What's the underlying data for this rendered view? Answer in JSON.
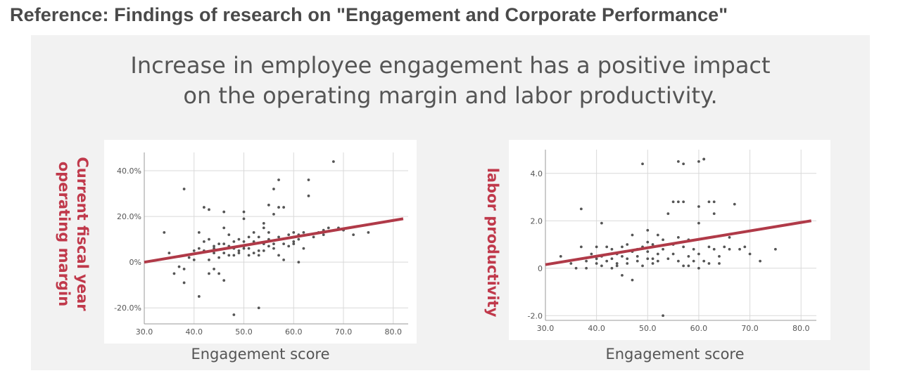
{
  "header": {
    "title": "Reference: Findings of research on \"Engagement and Corporate Performance\"",
    "subtitle_line1": "Increase in employee engagement has a positive impact",
    "subtitle_line2": "on the operating margin and labor productivity."
  },
  "colors": {
    "trend": "#b03a48",
    "ylabel": "#c0394b",
    "point": "#555555",
    "grid": "#d9d9d9"
  },
  "chart_data": [
    {
      "type": "scatter",
      "title": "",
      "xlabel": "Engagement score",
      "ylabel_lines": [
        "Current fiscal year",
        "operating margin"
      ],
      "xlim": [
        30,
        83
      ],
      "ylim": [
        -27,
        48
      ],
      "xticks": [
        30,
        40,
        50,
        60,
        70,
        80
      ],
      "xtick_labels": [
        "30.0",
        "40.0",
        "50.0",
        "60.0",
        "70.0",
        "80.0"
      ],
      "yticks": [
        -20,
        0,
        20,
        40
      ],
      "ytick_labels": [
        "-20.0%",
        "0%",
        "20.0%",
        "40.0%"
      ],
      "trend": [
        [
          30,
          0
        ],
        [
          82,
          19
        ]
      ],
      "points": [
        [
          34,
          13
        ],
        [
          35,
          4
        ],
        [
          36,
          -5
        ],
        [
          37,
          -2
        ],
        [
          38,
          -3
        ],
        [
          38,
          32
        ],
        [
          38,
          -9
        ],
        [
          39,
          2
        ],
        [
          40,
          1
        ],
        [
          40,
          5
        ],
        [
          41,
          6
        ],
        [
          41,
          13
        ],
        [
          41,
          -15
        ],
        [
          42,
          24
        ],
        [
          42,
          9
        ],
        [
          42,
          5
        ],
        [
          43,
          23
        ],
        [
          43,
          10
        ],
        [
          43,
          1
        ],
        [
          43,
          -5
        ],
        [
          44,
          7
        ],
        [
          44,
          4
        ],
        [
          44,
          6
        ],
        [
          44,
          -3
        ],
        [
          45,
          8
        ],
        [
          45,
          2
        ],
        [
          45,
          -5
        ],
        [
          46,
          4
        ],
        [
          46,
          22
        ],
        [
          46,
          -8
        ],
        [
          46,
          15
        ],
        [
          46,
          8
        ],
        [
          47,
          3
        ],
        [
          47,
          7
        ],
        [
          47,
          12
        ],
        [
          48,
          -23
        ],
        [
          48,
          6
        ],
        [
          48,
          9
        ],
        [
          48,
          3
        ],
        [
          49,
          5
        ],
        [
          49,
          10
        ],
        [
          49,
          4
        ],
        [
          50,
          6
        ],
        [
          50,
          19
        ],
        [
          50,
          22
        ],
        [
          50,
          9
        ],
        [
          50,
          7
        ],
        [
          51,
          3
        ],
        [
          51,
          11
        ],
        [
          51,
          6
        ],
        [
          52,
          4
        ],
        [
          52,
          13
        ],
        [
          52,
          9
        ],
        [
          53,
          5
        ],
        [
          53,
          11
        ],
        [
          53,
          -20
        ],
        [
          53,
          3
        ],
        [
          54,
          8
        ],
        [
          54,
          17
        ],
        [
          54,
          15
        ],
        [
          54,
          5
        ],
        [
          55,
          10
        ],
        [
          55,
          7
        ],
        [
          55,
          25
        ],
        [
          55,
          13
        ],
        [
          56,
          21
        ],
        [
          56,
          32
        ],
        [
          56,
          6
        ],
        [
          56,
          8
        ],
        [
          57,
          36
        ],
        [
          57,
          11
        ],
        [
          57,
          24
        ],
        [
          57,
          3
        ],
        [
          58,
          1
        ],
        [
          58,
          8
        ],
        [
          58,
          24
        ],
        [
          59,
          7
        ],
        [
          59,
          12
        ],
        [
          60,
          13
        ],
        [
          60,
          9
        ],
        [
          60,
          8
        ],
        [
          61,
          12
        ],
        [
          61,
          10
        ],
        [
          61,
          0
        ],
        [
          62,
          13
        ],
        [
          62,
          6
        ],
        [
          63,
          12
        ],
        [
          63,
          29
        ],
        [
          63,
          36
        ],
        [
          64,
          11
        ],
        [
          65,
          13
        ],
        [
          66,
          14
        ],
        [
          66,
          12
        ],
        [
          67,
          15
        ],
        [
          68,
          44
        ],
        [
          69,
          15
        ],
        [
          70,
          14
        ],
        [
          72,
          12
        ],
        [
          75,
          13
        ]
      ]
    },
    {
      "type": "scatter",
      "title": "",
      "xlabel": "Engagement score",
      "ylabel_lines": [
        "labor productivity"
      ],
      "xlim": [
        30,
        83
      ],
      "ylim": [
        -2.2,
        5.0
      ],
      "xticks": [
        30,
        40,
        50,
        60,
        70,
        80
      ],
      "xtick_labels": [
        "30.0",
        "40.0",
        "50.0",
        "60.0",
        "70.0",
        "80.0"
      ],
      "yticks": [
        -2,
        0,
        2,
        4
      ],
      "ytick_labels": [
        "-2.0",
        "0",
        "2.0",
        "4.0"
      ],
      "trend": [
        [
          30,
          0.15
        ],
        [
          82,
          2.0
        ]
      ],
      "points": [
        [
          33,
          0.5
        ],
        [
          35,
          0.2
        ],
        [
          36,
          0.0
        ],
        [
          37,
          0.9
        ],
        [
          37,
          2.5
        ],
        [
          38,
          0.3
        ],
        [
          38,
          0.0
        ],
        [
          39,
          0.6
        ],
        [
          40,
          0.9
        ],
        [
          40,
          0.4
        ],
        [
          40,
          0.2
        ],
        [
          41,
          1.9
        ],
        [
          41,
          0.1
        ],
        [
          41,
          0.5
        ],
        [
          42,
          0.9
        ],
        [
          42,
          0.3
        ],
        [
          43,
          0.8
        ],
        [
          43,
          0.0
        ],
        [
          43,
          0.4
        ],
        [
          44,
          0.6
        ],
        [
          44,
          0.2
        ],
        [
          44,
          0.1
        ],
        [
          45,
          -0.3
        ],
        [
          45,
          0.5
        ],
        [
          45,
          0.9
        ],
        [
          46,
          1.0
        ],
        [
          46,
          0.2
        ],
        [
          46,
          0.4
        ],
        [
          47,
          0.7
        ],
        [
          47,
          -0.5
        ],
        [
          47,
          1.4
        ],
        [
          48,
          0.3
        ],
        [
          48,
          0.8
        ],
        [
          48,
          0.5
        ],
        [
          49,
          4.4
        ],
        [
          49,
          0.9
        ],
        [
          49,
          0.1
        ],
        [
          50,
          1.1
        ],
        [
          50,
          1.6
        ],
        [
          50,
          0.4
        ],
        [
          50,
          0.7
        ],
        [
          51,
          0.2
        ],
        [
          51,
          1.0
        ],
        [
          51,
          0.4
        ],
        [
          52,
          1.4
        ],
        [
          52,
          0.6
        ],
        [
          52,
          0.3
        ],
        [
          53,
          -2.0
        ],
        [
          53,
          0.8
        ],
        [
          53,
          1.2
        ],
        [
          54,
          0.4
        ],
        [
          54,
          2.3
        ],
        [
          55,
          1.0
        ],
        [
          55,
          0.6
        ],
        [
          55,
          2.8
        ],
        [
          56,
          4.5
        ],
        [
          56,
          2.8
        ],
        [
          56,
          0.3
        ],
        [
          56,
          1.3
        ],
        [
          57,
          4.4
        ],
        [
          57,
          2.8
        ],
        [
          57,
          0.1
        ],
        [
          57,
          0.9
        ],
        [
          58,
          1.2
        ],
        [
          58,
          0.5
        ],
        [
          58,
          0.1
        ],
        [
          59,
          0.8
        ],
        [
          59,
          0.3
        ],
        [
          60,
          4.5
        ],
        [
          60,
          2.6
        ],
        [
          60,
          0.6
        ],
        [
          60,
          1.9
        ],
        [
          60,
          0.0
        ],
        [
          61,
          4.6
        ],
        [
          61,
          4.6
        ],
        [
          61,
          0.3
        ],
        [
          62,
          0.2
        ],
        [
          62,
          2.8
        ],
        [
          62,
          0.9
        ],
        [
          63,
          2.3
        ],
        [
          63,
          2.8
        ],
        [
          63,
          0.8
        ],
        [
          64,
          0.5
        ],
        [
          64,
          0.2
        ],
        [
          65,
          0.9
        ],
        [
          66,
          1.3
        ],
        [
          66,
          0.8
        ],
        [
          67,
          2.7
        ],
        [
          68,
          0.8
        ],
        [
          69,
          0.9
        ],
        [
          70,
          0.6
        ],
        [
          72,
          0.3
        ],
        [
          75,
          0.8
        ]
      ]
    }
  ]
}
